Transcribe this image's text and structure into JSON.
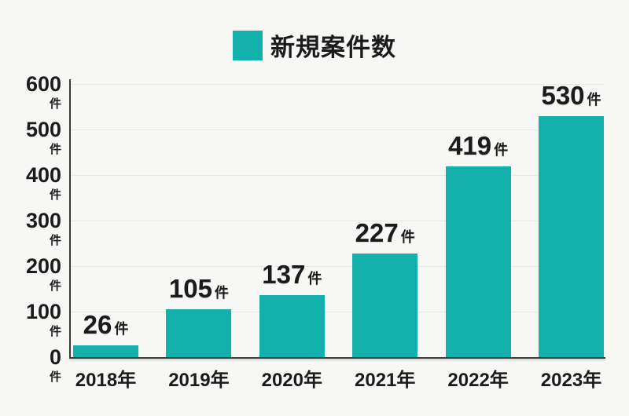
{
  "legend": {
    "label": "新規案件数"
  },
  "unit": "件",
  "colors": {
    "bar": "#14b0ab",
    "background": "#f7f7f5",
    "axis": "#3a3a3a",
    "grid": "#e7e7e4",
    "text": "#1b1b1b"
  },
  "chart_data": {
    "type": "bar",
    "title": "新規案件数",
    "categories": [
      "2018年",
      "2019年",
      "2020年",
      "2021年",
      "2022年",
      "2023年"
    ],
    "values": [
      26,
      105,
      137,
      227,
      419,
      530
    ],
    "value_unit": "件",
    "xlabel": "",
    "ylabel": "",
    "ylim": [
      0,
      600
    ],
    "yticks": [
      0,
      100,
      200,
      300,
      400,
      500,
      600
    ],
    "ytick_unit": "件",
    "grid": true,
    "legend_position": "top-center",
    "bar_color": "#14b0ab"
  }
}
